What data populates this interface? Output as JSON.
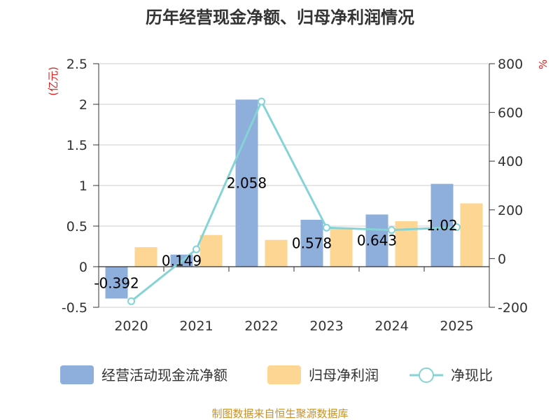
{
  "chart_data": {
    "type": "bar",
    "title": "历年经营现金净额、归母净利润情况",
    "categories": [
      "2020",
      "2021",
      "2022",
      "2023",
      "2024",
      "2025"
    ],
    "left_axis": {
      "unit_label": "(亿元)",
      "ylim": [
        -0.5,
        2.5
      ],
      "ticks": [
        -0.5,
        0,
        0.5,
        1,
        1.5,
        2,
        2.5
      ],
      "tick_labels": [
        "-0.5",
        "0",
        "0.5",
        "1",
        "1.5",
        "2",
        "2.5"
      ]
    },
    "right_axis": {
      "unit_label": "%",
      "ylim": [
        -200,
        800
      ],
      "ticks": [
        -200,
        0,
        200,
        400,
        600,
        800
      ],
      "tick_labels": [
        "-200",
        "0",
        "200",
        "400",
        "600",
        "800"
      ]
    },
    "series": [
      {
        "name": "经营活动现金流净额",
        "type": "bar",
        "axis": "left",
        "color": "#8eaedc",
        "values": [
          -0.392,
          0.149,
          2.058,
          0.578,
          0.643,
          1.02
        ],
        "data_labels": [
          "-0.392",
          "0.149",
          "2.058",
          "0.578",
          "0.643",
          "1.02"
        ]
      },
      {
        "name": "归母净利润",
        "type": "bar",
        "axis": "left",
        "color": "#fdd693",
        "values": [
          0.24,
          0.39,
          0.33,
          0.47,
          0.56,
          0.78
        ]
      },
      {
        "name": "净现比",
        "type": "line",
        "axis": "right",
        "color": "#86d3d6",
        "values": [
          -175,
          38,
          645,
          127,
          117,
          129
        ]
      }
    ],
    "grid": true,
    "legend_position": "bottom"
  },
  "source_note": "制图数据来自恒生聚源数据库",
  "colors": {
    "title": "#333333",
    "axis_text": "#333333",
    "unit_text": "#e02020",
    "source_text": "#c8902a",
    "grid": "#cccccc",
    "axis_line": "#333333"
  }
}
